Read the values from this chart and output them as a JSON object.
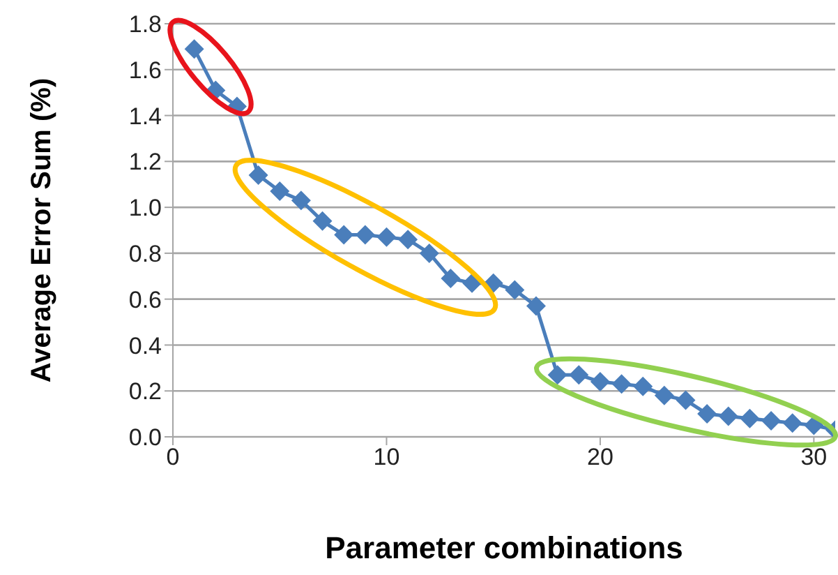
{
  "chart_data": {
    "type": "line",
    "xlabel": "Parameter combinations",
    "ylabel": "Average Error Sum (%)",
    "x": [
      1,
      2,
      3,
      4,
      5,
      6,
      7,
      8,
      9,
      10,
      11,
      12,
      13,
      14,
      15,
      16,
      17,
      18,
      19,
      20,
      21,
      22,
      23,
      24,
      25,
      26,
      27,
      28,
      29,
      30,
      31
    ],
    "series": [
      {
        "color": "#4a7ebb",
        "values": [
          1.69,
          1.51,
          1.44,
          1.14,
          1.07,
          1.03,
          0.94,
          0.88,
          0.88,
          0.87,
          0.86,
          0.8,
          0.69,
          0.67,
          0.67,
          0.64,
          0.57,
          0.27,
          0.27,
          0.24,
          0.23,
          0.22,
          0.18,
          0.16,
          0.1,
          0.09,
          0.08,
          0.07,
          0.06,
          0.05,
          0.03
        ]
      }
    ],
    "xlim": [
      0,
      31
    ],
    "xticks": [
      0,
      10,
      20,
      30
    ],
    "ylim": [
      0,
      1.8
    ],
    "yticks": [
      {
        "value": 0,
        "label": "0.0"
      },
      0.2,
      0.4,
      0.6,
      0.8,
      {
        "value": 1,
        "label": "1.0"
      },
      1.2,
      1.4,
      1.6,
      1.8
    ],
    "grid": "y",
    "marker": "diamond",
    "line_style": "solid"
  }
}
